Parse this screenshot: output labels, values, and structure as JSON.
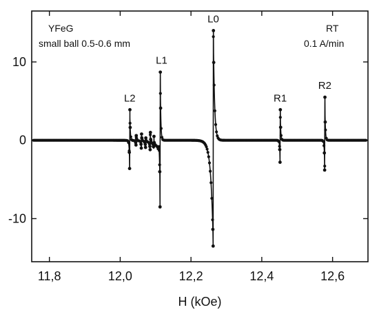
{
  "chart_data": {
    "type": "line",
    "title": "",
    "xlabel": "H (kOe)",
    "ylabel": "",
    "xlim": [
      11.75,
      12.7
    ],
    "ylim": [
      -15.5,
      16.5
    ],
    "x_ticks": [
      11.8,
      12.0,
      12.2,
      12.4,
      12.6
    ],
    "x_tick_labels": [
      "11,8",
      "12,0",
      "12,2",
      "12,4",
      "12,6"
    ],
    "y_ticks": [
      -10,
      0,
      10
    ],
    "y_tick_labels": [
      "-10",
      "0",
      "10"
    ],
    "grid": false,
    "legend": "none",
    "annotations_left": [
      "YFeG",
      "small ball 0.5-0.6 mm"
    ],
    "annotations_right": [
      "RT",
      "0.1 A/min"
    ],
    "peaks": [
      {
        "label": "L2",
        "x": 12.027,
        "top": 3.9,
        "bottom": -3.6
      },
      {
        "label": "L1",
        "x": 12.113,
        "top": 8.7,
        "bottom": -8.5
      },
      {
        "label": "L0",
        "x": 12.263,
        "top": 14.0,
        "bottom": -13.5
      },
      {
        "label": "R1",
        "x": 12.452,
        "top": 3.9,
        "bottom": -2.8
      },
      {
        "label": "R2",
        "x": 12.578,
        "top": 5.5,
        "bottom": -3.8
      }
    ],
    "minor_features": [
      {
        "x": 12.045,
        "top": 0.6,
        "bottom": -0.6
      },
      {
        "x": 12.06,
        "top": 0.8,
        "bottom": -1.0
      },
      {
        "x": 12.072,
        "top": 0.3,
        "bottom": -0.9
      },
      {
        "x": 12.085,
        "top": 1.0,
        "bottom": -1.2
      },
      {
        "x": 12.095,
        "top": 0.5,
        "bottom": -0.8
      }
    ],
    "marker_color": "#111111",
    "line_color": "#111111"
  }
}
